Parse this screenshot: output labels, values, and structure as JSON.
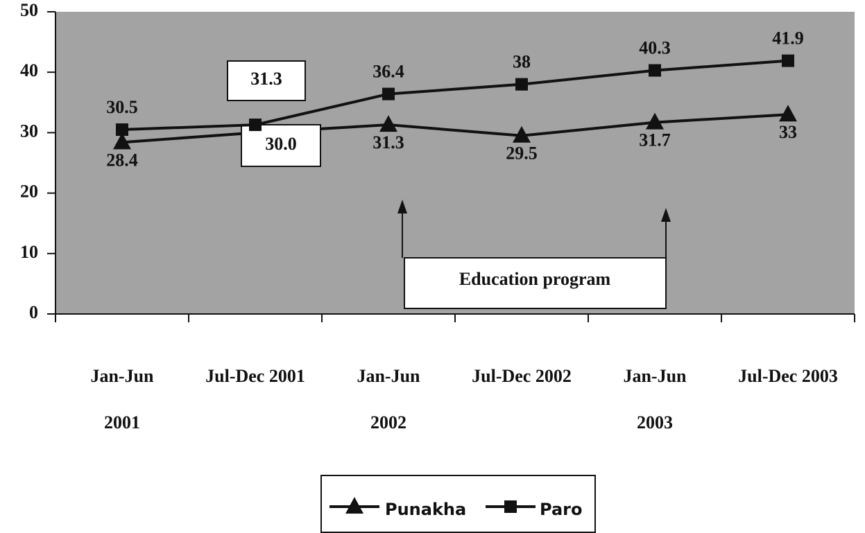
{
  "chart_data": {
    "type": "line",
    "categories": [
      [
        "Jan-Jun",
        "2001"
      ],
      [
        "Jul-Dec 2001"
      ],
      [
        "Jan-Jun",
        "2002"
      ],
      [
        "Jul-Dec 2002"
      ],
      [
        "Jan-Jun",
        "2003"
      ],
      [
        "Jul-Dec 2003"
      ]
    ],
    "series": [
      {
        "name": "Punakha",
        "color": "#111111",
        "marker": "triangle",
        "values": [
          28.4,
          30.0,
          31.3,
          29.5,
          31.7,
          33
        ],
        "value_labels": [
          "28.4",
          "30.0",
          "31.3",
          "29.5",
          "31.7",
          "33"
        ]
      },
      {
        "name": "Paro",
        "color": "#111111",
        "marker": "square",
        "values": [
          30.5,
          31.3,
          36.4,
          38,
          40.3,
          41.9
        ]
      }
    ],
    "ylim": [
      0,
      50
    ],
    "yticks": [
      0,
      10,
      20,
      30,
      40,
      50
    ],
    "annotation": "Education program"
  }
}
